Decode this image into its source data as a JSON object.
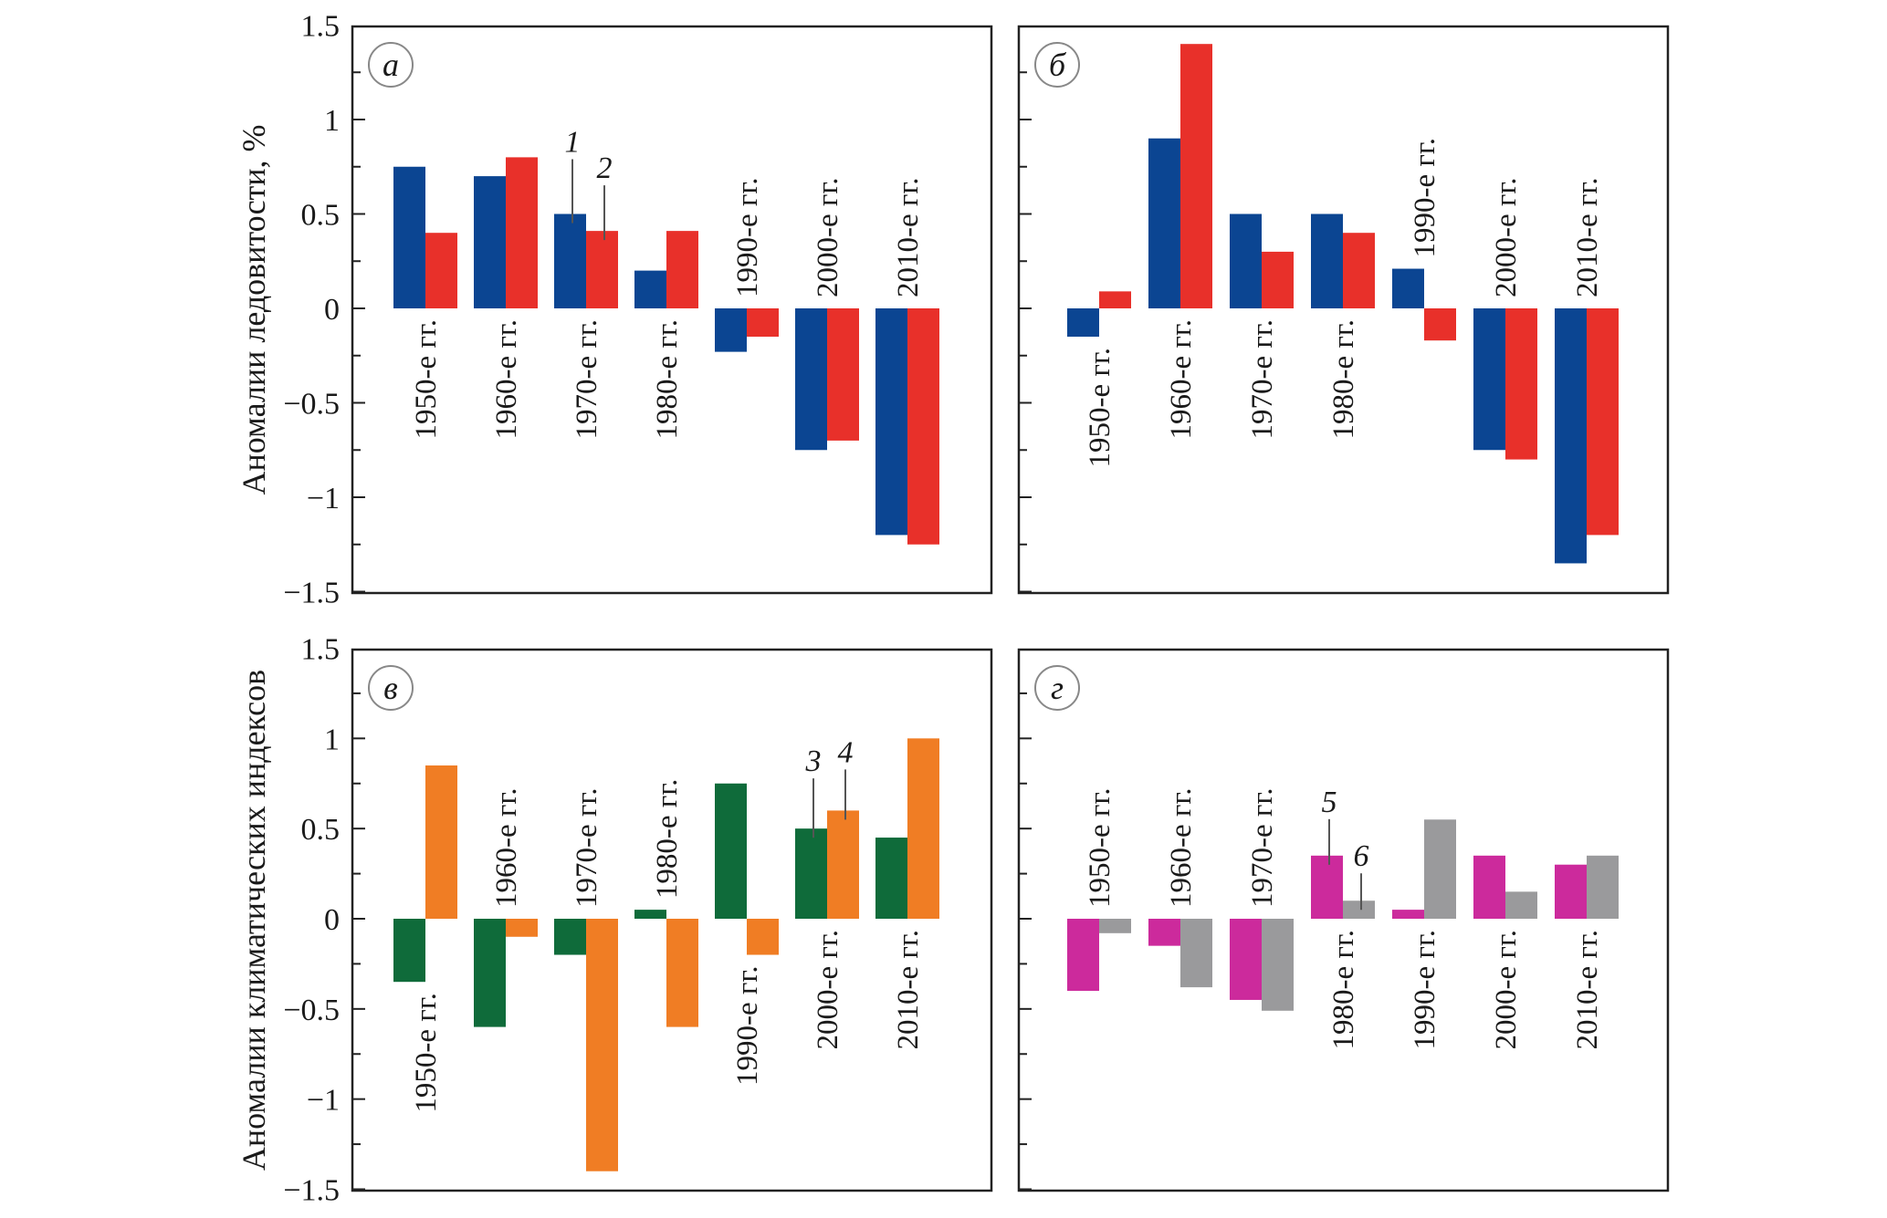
{
  "figure": {
    "ylabel_top": "Аномалии ледовитости, %",
    "ylabel_bottom": "Аномалии климатических индексов"
  },
  "chart_data": [
    {
      "type": "bar",
      "panel": "а",
      "categories": [
        "1950-е гг.",
        "1960-е гг.",
        "1970-е гг.",
        "1980-е гг.",
        "1990-е гг.",
        "2000-е гг.",
        "2010-е гг."
      ],
      "series": [
        {
          "name": "1",
          "color": "#0b4592",
          "values": [
            0.75,
            0.7,
            0.5,
            0.2,
            -0.23,
            -0.75,
            -1.2
          ]
        },
        {
          "name": "2",
          "color": "#e8302a",
          "values": [
            0.4,
            0.8,
            0.41,
            0.41,
            -0.15,
            -0.7,
            -1.25
          ]
        }
      ],
      "ylim": [
        -1.5,
        1.5
      ],
      "yticks": [
        "1.5",
        "1",
        "0.5",
        "0",
        "−0.5",
        "−1",
        "−1.5"
      ],
      "ylabel": "Аномалии ледовитости, %",
      "label_side": [
        "below",
        "below",
        "below",
        "below",
        "above",
        "above",
        "above"
      ]
    },
    {
      "type": "bar",
      "panel": "б",
      "categories": [
        "1950-е гг.",
        "1960-е гг.",
        "1970-е гг.",
        "1980-е гг.",
        "1990-е гг.",
        "2000-е гг.",
        "2010-е гг."
      ],
      "series": [
        {
          "name": "1",
          "color": "#0b4592",
          "values": [
            -0.15,
            0.9,
            0.5,
            0.5,
            0.21,
            -0.75,
            -1.35
          ]
        },
        {
          "name": "2",
          "color": "#e8302a",
          "values": [
            0.09,
            1.4,
            0.3,
            0.4,
            -0.17,
            -0.8,
            -1.2
          ]
        }
      ],
      "ylim": [
        -1.5,
        1.5
      ],
      "label_side": [
        "below",
        "below",
        "below",
        "below",
        "above",
        "above",
        "above"
      ]
    },
    {
      "type": "bar",
      "panel": "в",
      "categories": [
        "1950-е гг.",
        "1960-е гг.",
        "1970-е гг.",
        "1980-е гг.",
        "1990-е гг.",
        "2000-е гг.",
        "2010-е гг."
      ],
      "series": [
        {
          "name": "3",
          "color": "#0f6b3a",
          "values": [
            -0.35,
            -0.6,
            -0.2,
            0.05,
            0.75,
            0.5,
            0.45
          ]
        },
        {
          "name": "4",
          "color": "#f07d24",
          "values": [
            0.85,
            -0.1,
            -1.4,
            -0.6,
            -0.2,
            0.6,
            1.0
          ]
        }
      ],
      "ylim": [
        -1.5,
        1.5
      ],
      "yticks": [
        "1.5",
        "1",
        "0.5",
        "0",
        "−0.5",
        "−1",
        "−1.5"
      ],
      "ylabel": "Аномалии климатических индексов",
      "label_side": [
        "below",
        "above",
        "above",
        "above",
        "below",
        "below",
        "below"
      ]
    },
    {
      "type": "bar",
      "panel": "г",
      "categories": [
        "1950-е гг.",
        "1960-е гг.",
        "1970-е гг.",
        "1980-е гг.",
        "1990-е гг.",
        "2000-е гг.",
        "2010-е гг."
      ],
      "series": [
        {
          "name": "5",
          "color": "#cc2a9c",
          "values": [
            -0.4,
            -0.15,
            -0.45,
            0.35,
            0.05,
            0.35,
            0.3
          ]
        },
        {
          "name": "6",
          "color": "#9a9a9c",
          "values": [
            -0.08,
            -0.38,
            -0.51,
            0.1,
            0.55,
            0.15,
            0.35
          ]
        }
      ],
      "ylim": [
        -1.5,
        1.5
      ],
      "label_side": [
        "above",
        "above",
        "above",
        "below",
        "below",
        "below",
        "below"
      ]
    }
  ]
}
